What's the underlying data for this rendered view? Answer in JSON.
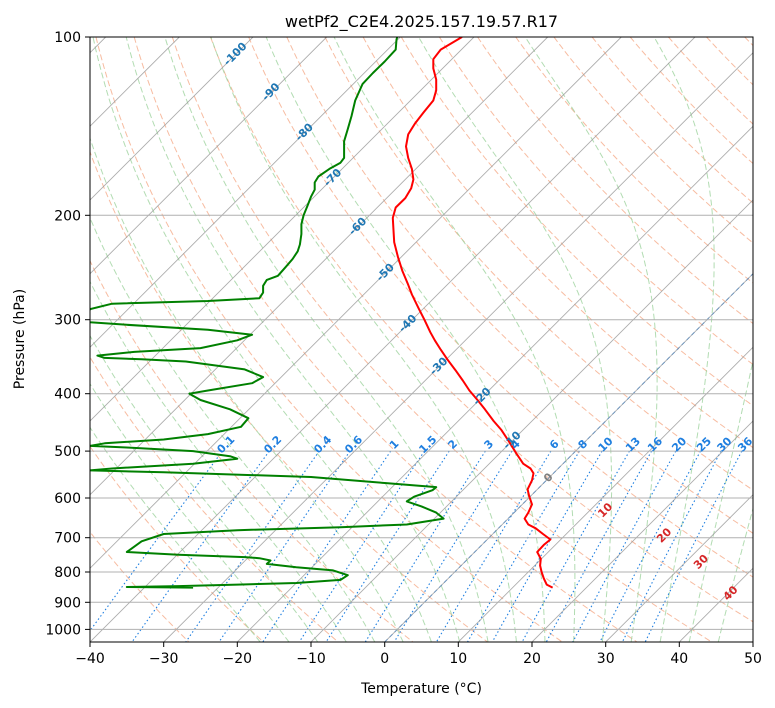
{
  "chart_data": {
    "type": "line",
    "title": "wetPf2_C2E4.2025.157.19.57.R17",
    "xlabel": "Temperature (°C)",
    "ylabel": "Pressure (hPa)",
    "xlim": [
      -40,
      50
    ],
    "ylim": [
      1050,
      100
    ],
    "y_scale": "log",
    "grid": true,
    "x_ticks": [
      "−40",
      "−30",
      "−20",
      "−10",
      "0",
      "10",
      "20",
      "30",
      "40",
      "50"
    ],
    "x_tick_values": [
      -40,
      -30,
      -20,
      -10,
      0,
      10,
      20,
      30,
      40,
      50
    ],
    "y_ticks": [
      "100",
      "200",
      "300",
      "400",
      "500",
      "600",
      "700",
      "800",
      "900",
      "1000"
    ],
    "y_tick_values": [
      100,
      200,
      300,
      400,
      500,
      600,
      700,
      800,
      900,
      1000
    ],
    "colors": {
      "temperature": "#ff0000",
      "dewpoint": "#008000",
      "isotherm": "#808080",
      "dry_adiabat": "#f4a582",
      "moist_adiabat": "#9fd39f",
      "mixing_ratio": "#1f7fe0",
      "isotherm_label": "#1f77b4",
      "dry_label": "#d62728"
    },
    "series": [
      {
        "key": "temperature",
        "points": [
          [
            22.8,
            850
          ],
          [
            22,
            840
          ],
          [
            21.6,
            820
          ],
          [
            21.3,
            800
          ],
          [
            21.1,
            780
          ],
          [
            21.2,
            760
          ],
          [
            20.7,
            740
          ],
          [
            21.6,
            720
          ],
          [
            22.5,
            705
          ],
          [
            21.5,
            690
          ],
          [
            20.5,
            675
          ],
          [
            19.5,
            665
          ],
          [
            19.0,
            650
          ],
          [
            19.5,
            635
          ],
          [
            20.0,
            615
          ],
          [
            19.6,
            595
          ],
          [
            19.4,
            580
          ],
          [
            20.0,
            560
          ],
          [
            20.2,
            545
          ],
          [
            19.8,
            535
          ],
          [
            18.8,
            525
          ],
          [
            17.9,
            505
          ],
          [
            16.8,
            480
          ],
          [
            15.8,
            460
          ],
          [
            14.8,
            445
          ],
          [
            13.6,
            425
          ],
          [
            12.6,
            410
          ],
          [
            11.5,
            395
          ],
          [
            10.6,
            380
          ],
          [
            9.6,
            365
          ],
          [
            8.5,
            350
          ],
          [
            7.6,
            337
          ],
          [
            6.8,
            325
          ],
          [
            6.2,
            315
          ],
          [
            5.4,
            300
          ],
          [
            4.6,
            287
          ],
          [
            3.7,
            272
          ],
          [
            3.2,
            262
          ],
          [
            2.4,
            248
          ],
          [
            1.8,
            235
          ],
          [
            1.3,
            222
          ],
          [
            1.2,
            212
          ],
          [
            1.1,
            202
          ],
          [
            1.5,
            194
          ],
          [
            2.8,
            187
          ],
          [
            3.6,
            180
          ],
          [
            3.9,
            174
          ],
          [
            3.7,
            167
          ],
          [
            3.2,
            160
          ],
          [
            2.9,
            153
          ],
          [
            3.2,
            146
          ],
          [
            4.1,
            140
          ],
          [
            5.3,
            134
          ],
          [
            6.6,
            128
          ],
          [
            7.0,
            123
          ],
          [
            7.0,
            118
          ],
          [
            6.6,
            113
          ],
          [
            6.6,
            109
          ],
          [
            7.6,
            105
          ],
          [
            10.5,
            100
          ]
        ]
      },
      {
        "key": "dewpoint",
        "points": [
          [
            -26,
            850
          ],
          [
            -35,
            848
          ],
          [
            -28,
            845
          ],
          [
            -20,
            840
          ],
          [
            -12,
            835
          ],
          [
            -6,
            825
          ],
          [
            -5,
            810
          ],
          [
            -7,
            795
          ],
          [
            -12,
            785
          ],
          [
            -16,
            775
          ],
          [
            -15.5,
            765
          ],
          [
            -17,
            758
          ],
          [
            -19,
            755
          ],
          [
            -28,
            748
          ],
          [
            -35,
            740
          ],
          [
            -34,
            725
          ],
          [
            -33,
            710
          ],
          [
            -30,
            690
          ],
          [
            -20,
            680
          ],
          [
            -6,
            672
          ],
          [
            3,
            665
          ],
          [
            8,
            650
          ],
          [
            7,
            635
          ],
          [
            5,
            620
          ],
          [
            3,
            608
          ],
          [
            4,
            597
          ],
          [
            6.5,
            582
          ],
          [
            7,
            575
          ],
          [
            0,
            566
          ],
          [
            -10,
            553
          ],
          [
            -30,
            543
          ],
          [
            -40,
            539
          ],
          [
            -37,
            535
          ],
          [
            -26,
            525
          ],
          [
            -20,
            515
          ],
          [
            -21,
            510
          ],
          [
            -26,
            500
          ],
          [
            -35,
            493
          ],
          [
            -40,
            490
          ],
          [
            -38,
            485
          ],
          [
            -30,
            478
          ],
          [
            -24,
            468
          ],
          [
            -19.5,
            455
          ],
          [
            -18.5,
            440
          ],
          [
            -21,
            425
          ],
          [
            -25,
            410
          ],
          [
            -26.5,
            400
          ],
          [
            -24,
            395
          ],
          [
            -18,
            384
          ],
          [
            -16.5,
            375
          ],
          [
            -19,
            364
          ],
          [
            -27,
            353
          ],
          [
            -33,
            350
          ],
          [
            -38,
            348
          ],
          [
            -39,
            345
          ],
          [
            -34,
            340
          ],
          [
            -25,
            335
          ],
          [
            -20,
            325
          ],
          [
            -18,
            318
          ],
          [
            -24,
            312
          ],
          [
            -35,
            306
          ],
          [
            -40,
            303
          ],
          [
            -40.5,
            300
          ],
          [
            -40,
            288
          ],
          [
            -37,
            282
          ],
          [
            -24,
            279
          ],
          [
            -17,
            276
          ],
          [
            -16.5,
            270
          ],
          [
            -16.5,
            263
          ],
          [
            -16,
            257
          ],
          [
            -14.5,
            253
          ],
          [
            -13.5,
            245
          ],
          [
            -12.5,
            237
          ],
          [
            -11.8,
            230
          ],
          [
            -11.5,
            224
          ],
          [
            -11.3,
            215
          ],
          [
            -11.3,
            207
          ],
          [
            -11.0,
            200
          ],
          [
            -10.5,
            193
          ],
          [
            -10,
            186
          ],
          [
            -9.5,
            181
          ],
          [
            -9.5,
            176
          ],
          [
            -9,
            172
          ],
          [
            -7.5,
            167
          ],
          [
            -6,
            163
          ],
          [
            -5.5,
            160
          ],
          [
            -5.5,
            150
          ],
          [
            -5,
            143
          ],
          [
            -4.5,
            136
          ],
          [
            -4,
            128
          ],
          [
            -3,
            120
          ],
          [
            -1.6,
            115
          ],
          [
            0,
            110
          ],
          [
            1.5,
            105
          ],
          [
            1.6,
            101
          ],
          [
            1.7,
            100
          ]
        ]
      }
    ],
    "isotherm_labels": [
      "-100",
      "-90",
      "-80",
      "-70",
      "-60",
      "-50",
      "-40",
      "-30",
      "-20",
      "-10",
      "0"
    ],
    "isotherm_label_values": [
      -100,
      -90,
      -80,
      -70,
      -60,
      -50,
      -40,
      -30,
      -20,
      -10,
      0
    ],
    "mixing_ratio_labels": [
      "0.1",
      "0.2",
      "0.4",
      "0.6",
      "1",
      "1.5",
      "2",
      "3",
      "4",
      "6",
      "8",
      "10",
      "13",
      "16",
      "20",
      "25",
      "30",
      "36"
    ],
    "mixing_ratio_label_values": [
      0.1,
      0.2,
      0.4,
      0.6,
      1,
      1.5,
      2,
      3,
      4,
      6,
      8,
      10,
      13,
      16,
      20,
      25,
      30,
      36
    ],
    "dry_adiabat_labels": [
      "10",
      "20",
      "30",
      "40"
    ],
    "dry_adiabat_label_values": [
      10,
      20,
      30,
      40
    ]
  }
}
